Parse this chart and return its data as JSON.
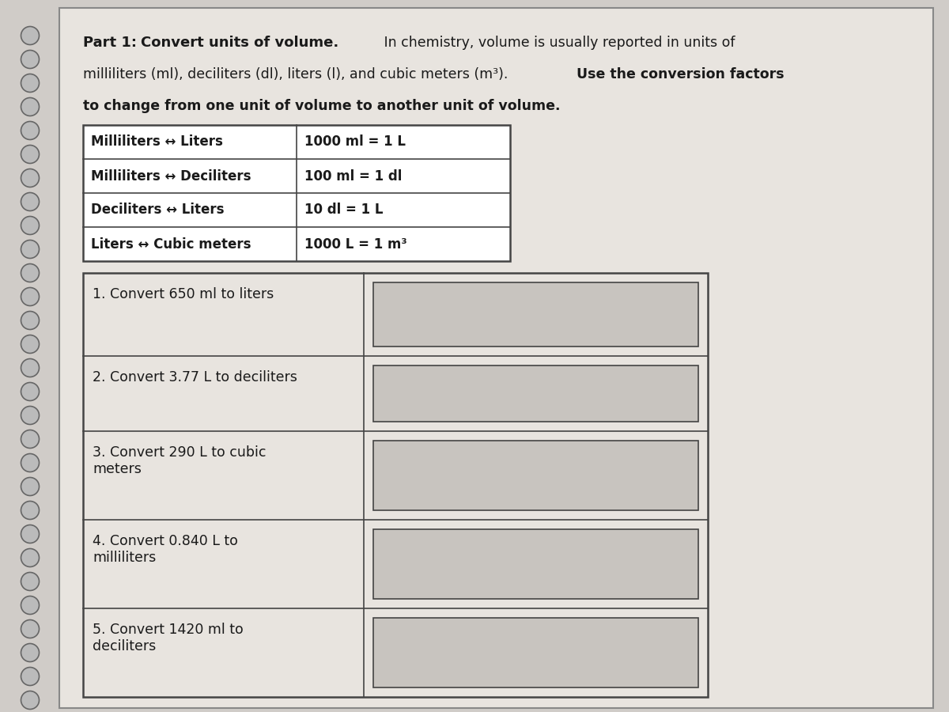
{
  "bg_color": "#d0ccc8",
  "page_color": "#e8e4df",
  "conversion_table": {
    "col1": [
      "Milliliters ↔ Liters",
      "Milliliters ↔ Deciliters",
      "Deciliters ↔ Liters",
      "Liters ↔ Cubic meters"
    ],
    "col2": [
      "1000 ml = 1 L",
      "100 ml = 1 dl",
      "10 dl = 1 L",
      "1000 L = 1 m³"
    ]
  },
  "questions": [
    "1. Convert 650 ml to liters",
    "2. Convert 3.77 L to deciliters",
    "3. Convert 290 L to cubic\nmeters",
    "4. Convert 0.840 L to\nmilliliters",
    "5. Convert 1420 ml to\ndeciliters"
  ],
  "spiral_color": "#999999",
  "table_border_color": "#444444",
  "answer_box_color": "#c8c4bf",
  "text_color": "#1a1a1a"
}
